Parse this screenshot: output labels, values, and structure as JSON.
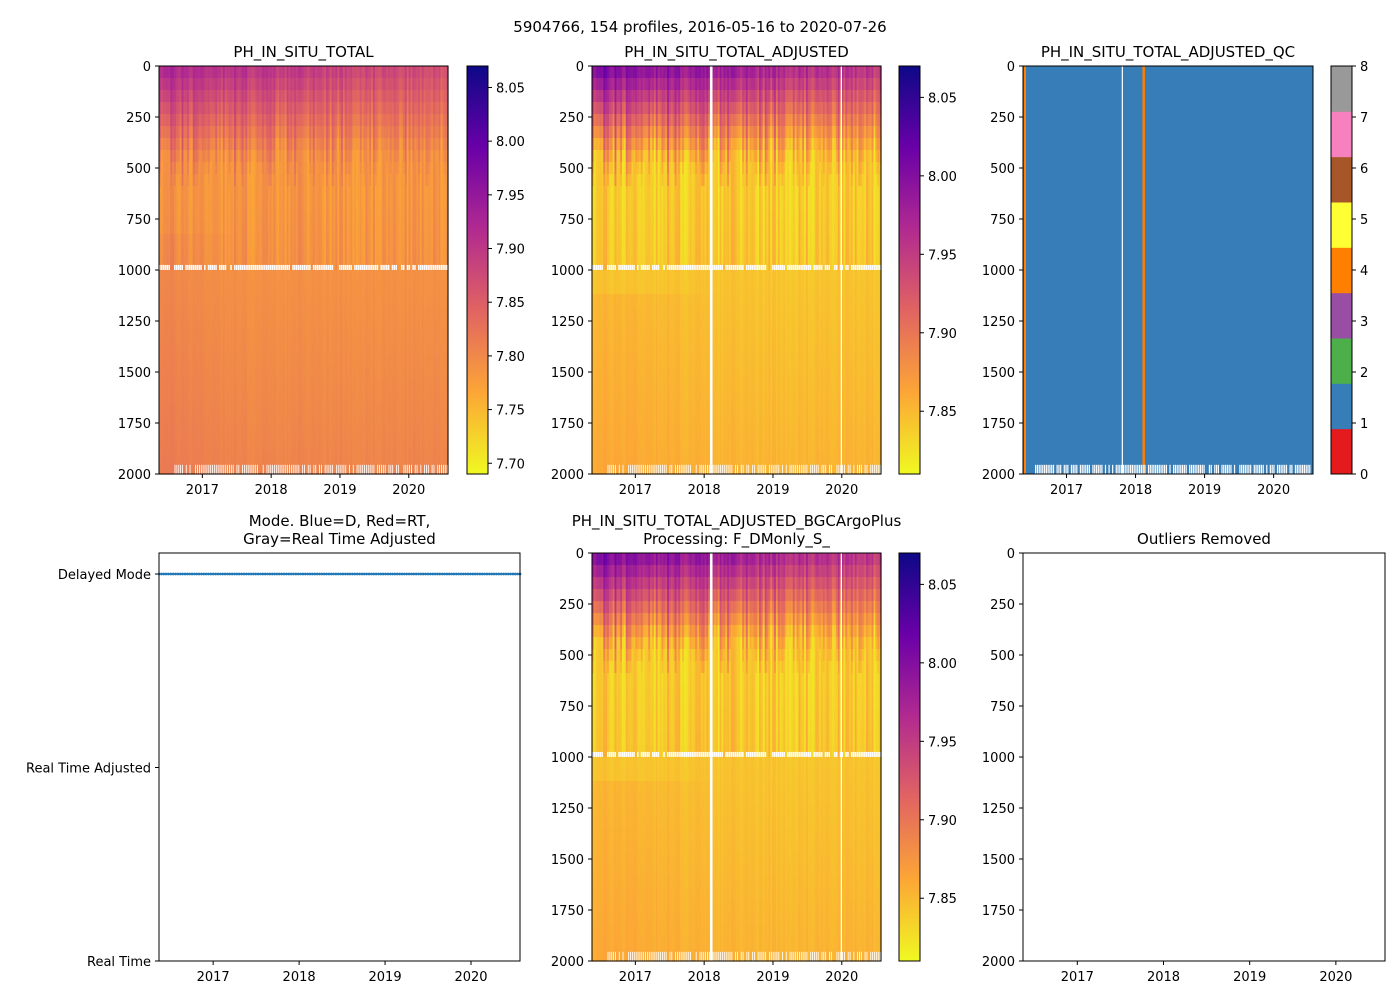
{
  "figure": {
    "suptitle": "5904766, 154 profiles, 2016-05-16 to 2020-07-26"
  },
  "colormaps": {
    "plasma_r": [
      "#f0f921",
      "#fca636",
      "#e16462",
      "#b12a90",
      "#6a00a8",
      "#0d0887"
    ],
    "qc": [
      "#e41a1c",
      "#377eb8",
      "#4daf4a",
      "#984ea3",
      "#ff7f00",
      "#ffff33",
      "#a65628",
      "#f781bf",
      "#999999"
    ]
  },
  "chart_data": [
    {
      "id": "raw",
      "type": "heatmap",
      "title": "PH_IN_SITU_TOTAL",
      "x_ticks": [
        "2017",
        "2018",
        "2019",
        "2020"
      ],
      "xlim": [
        2016.37,
        2020.57
      ],
      "y_ticks": [
        "0",
        "250",
        "500",
        "750",
        "1000",
        "1250",
        "1500",
        "1750",
        "2000"
      ],
      "ylim": [
        2000,
        0
      ],
      "ylabel": "",
      "colorbar": {
        "colormap": "plasma_r",
        "range": [
          7.69,
          8.07
        ],
        "ticks": [
          "7.70",
          "7.75",
          "7.80",
          "7.85",
          "7.90",
          "7.95",
          "8.00",
          "8.05"
        ]
      }
    },
    {
      "id": "adjusted",
      "type": "heatmap",
      "title": "PH_IN_SITU_TOTAL_ADJUSTED",
      "x_ticks": [
        "2017",
        "2018",
        "2019",
        "2020"
      ],
      "xlim": [
        2016.37,
        2020.57
      ],
      "y_ticks": [
        "0",
        "250",
        "500",
        "750",
        "1000",
        "1250",
        "1500",
        "1750",
        "2000"
      ],
      "ylim": [
        2000,
        0
      ],
      "colorbar": {
        "colormap": "plasma_r",
        "range": [
          7.81,
          8.07
        ],
        "ticks": [
          "7.85",
          "7.90",
          "7.95",
          "8.00",
          "8.05"
        ]
      }
    },
    {
      "id": "qc",
      "type": "heatmap",
      "title": "PH_IN_SITU_TOTAL_ADJUSTED_QC",
      "x_ticks": [
        "2017",
        "2018",
        "2019",
        "2020"
      ],
      "xlim": [
        2016.37,
        2020.57
      ],
      "y_ticks": [
        "0",
        "250",
        "500",
        "750",
        "1000",
        "1250",
        "1500",
        "1750",
        "2000"
      ],
      "ylim": [
        2000,
        0
      ],
      "dominant_flag": 1,
      "flag4_column_year": 2018.1,
      "colorbar": {
        "colormap": "qc",
        "range": [
          0,
          8
        ],
        "ticks": [
          "0",
          "1",
          "2",
          "3",
          "4",
          "5",
          "6",
          "7",
          "8"
        ]
      }
    },
    {
      "id": "mode",
      "type": "scatter",
      "title": [
        "Mode. Blue=D, Red=RT,",
        "Gray=Real Time Adjusted"
      ],
      "x_ticks": [
        "2017",
        "2018",
        "2019",
        "2020"
      ],
      "xlim": [
        2016.37,
        2020.57
      ],
      "y_categories": [
        "Delayed Mode",
        "Real Time Adjusted",
        "Real Time"
      ],
      "series": [
        {
          "name": "D",
          "color": "#1f77b4",
          "category": "Delayed Mode",
          "x_range": [
            2016.37,
            2020.57
          ],
          "count": 154
        }
      ]
    },
    {
      "id": "bgcargoplus",
      "type": "heatmap",
      "title": [
        "PH_IN_SITU_TOTAL_ADJUSTED_BGCArgoPlus",
        "Processing: F_DMonly_S_"
      ],
      "x_ticks": [
        "2017",
        "2018",
        "2019",
        "2020"
      ],
      "xlim": [
        2016.37,
        2020.57
      ],
      "y_ticks": [
        "0",
        "250",
        "500",
        "750",
        "1000",
        "1250",
        "1500",
        "1750",
        "2000"
      ],
      "ylim": [
        2000,
        0
      ],
      "colorbar": {
        "colormap": "plasma_r",
        "range": [
          7.81,
          8.07
        ],
        "ticks": [
          "7.85",
          "7.90",
          "7.95",
          "8.00",
          "8.05"
        ]
      }
    },
    {
      "id": "outliers",
      "type": "scatter",
      "title": "Outliers Removed",
      "x_ticks": [
        "2017",
        "2018",
        "2019",
        "2020"
      ],
      "xlim": [
        2016.37,
        2020.57
      ],
      "y_ticks": [
        "0",
        "250",
        "500",
        "750",
        "1000",
        "1250",
        "1500",
        "1750",
        "2000"
      ],
      "ylim": [
        2000,
        0
      ],
      "series": []
    }
  ]
}
